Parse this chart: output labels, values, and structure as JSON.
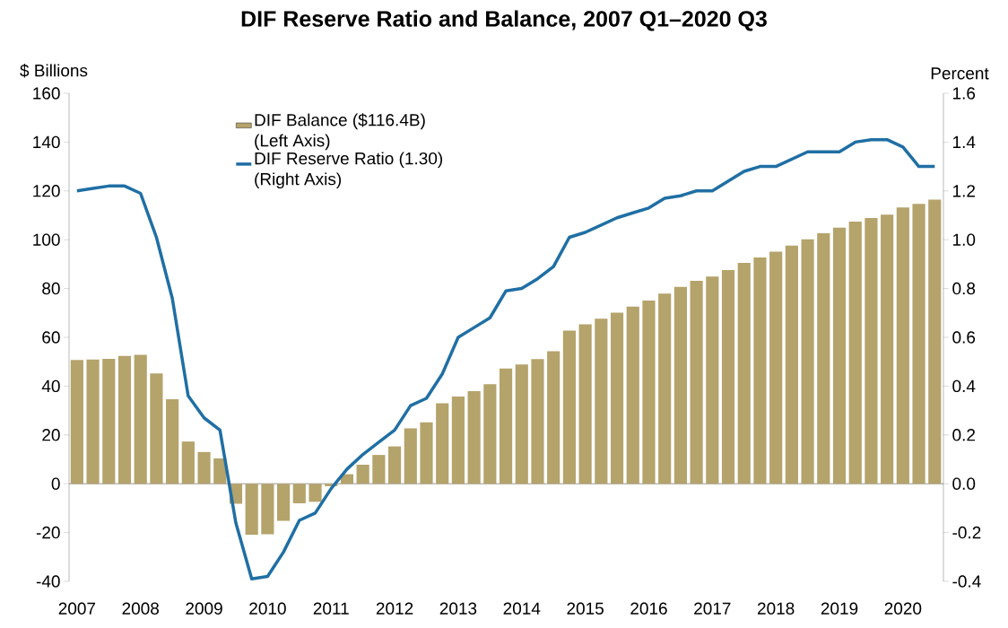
{
  "chart_data": {
    "type": "bar",
    "title": "DIF Reserve Ratio and Balance, 2007 Q1–2020 Q3",
    "ylabel": "$ Billions",
    "y2label": "Percent",
    "categories": [
      "2007",
      null,
      null,
      null,
      "2008",
      null,
      null,
      null,
      "2009",
      null,
      null,
      null,
      "2010",
      null,
      null,
      null,
      "2011",
      null,
      null,
      null,
      "2012",
      null,
      null,
      null,
      "2013",
      null,
      null,
      null,
      "2014",
      null,
      null,
      null,
      "2015",
      null,
      null,
      null,
      "2016",
      null,
      null,
      null,
      "2017",
      null,
      null,
      null,
      "2018",
      null,
      null,
      null,
      "2019",
      null,
      null,
      null,
      "2020",
      null,
      null
    ],
    "series": [
      {
        "name": "DIF Balance ($116.4B) (Left Axis)",
        "color": "#b4a36b",
        "values": [
          50.7,
          50.9,
          51.2,
          52.4,
          52.8,
          45.2,
          34.6,
          17.3,
          13.0,
          10.4,
          -8.2,
          -20.9,
          -20.7,
          -15.2,
          -8.0,
          -7.4,
          -1.0,
          3.9,
          7.8,
          11.8,
          15.3,
          22.7,
          25.2,
          33.0,
          35.7,
          37.9,
          40.8,
          47.2,
          48.9,
          51.1,
          54.3,
          62.8,
          65.3,
          67.6,
          70.1,
          72.6,
          75.1,
          77.9,
          80.7,
          83.2,
          84.9,
          87.6,
          90.5,
          92.7,
          95.1,
          97.6,
          100.2,
          102.6,
          104.9,
          107.4,
          108.9,
          110.3,
          113.2,
          114.7,
          116.4
        ]
      },
      {
        "name": "DIF Reserve Ratio (1.30) (Right Axis)",
        "type": "line",
        "axis": "y2",
        "color": "#1f6fa4",
        "values": [
          1.2,
          1.21,
          1.22,
          1.22,
          1.19,
          1.01,
          0.76,
          0.36,
          0.27,
          0.22,
          -0.16,
          -0.39,
          -0.38,
          -0.28,
          -0.15,
          -0.12,
          -0.02,
          0.06,
          0.12,
          0.17,
          0.22,
          0.32,
          0.35,
          0.45,
          0.6,
          0.64,
          0.68,
          0.79,
          0.8,
          0.84,
          0.89,
          1.01,
          1.03,
          1.06,
          1.09,
          1.11,
          1.13,
          1.17,
          1.18,
          1.2,
          1.2,
          1.24,
          1.28,
          1.3,
          1.3,
          1.33,
          1.36,
          1.36,
          1.36,
          1.4,
          1.41,
          1.41,
          1.38,
          1.3,
          1.3
        ]
      }
    ],
    "ylim": [
      -40,
      160
    ],
    "yticks": [
      -40,
      -20,
      0,
      20,
      40,
      60,
      80,
      100,
      120,
      140,
      160
    ],
    "y2lim": [
      -0.4,
      1.6
    ],
    "y2ticks": [
      -0.4,
      -0.2,
      {
        "value": 0,
        "label": "0.0"
      },
      0.2,
      0.4,
      0.6,
      0.8,
      {
        "value": 1,
        "label": "1.0"
      },
      1.2,
      1.4,
      1.6
    ],
    "legend": "top left"
  }
}
